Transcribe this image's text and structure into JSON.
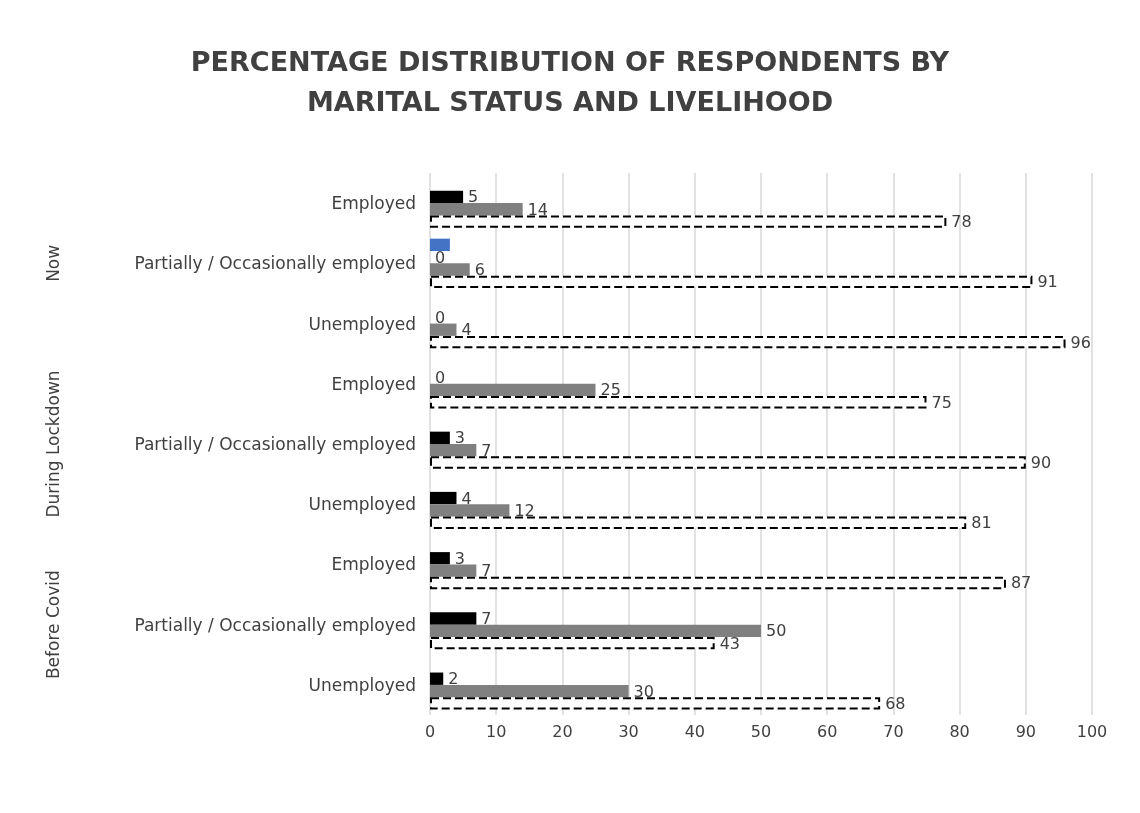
{
  "chart_data": {
    "type": "bar",
    "orientation": "horizontal",
    "title": "PERCENTAGE DISTRIBUTION OF RESPONDENTS BY\nMARITAL STATUS AND LIVELIHOOD",
    "categories": [
      "Employed",
      "Partially / Occasionally employed",
      "Unemployed",
      "Employed",
      "Partially / Occasionally employed",
      "Unemployed",
      "Employed",
      "Partially / Occasionally employed",
      "Unemployed"
    ],
    "annotations": [
      "Now",
      "During Lockdown",
      "Before Covid"
    ],
    "series": [
      {
        "color": "#4472c4",
        "values": [
          0,
          3,
          0,
          0,
          0,
          0,
          0,
          0,
          0
        ],
        "value_labels": [
          null,
          null,
          null,
          null,
          null,
          null,
          null,
          null,
          null
        ]
      },
      {
        "color": "#000000",
        "values": [
          5,
          0,
          0,
          0,
          3,
          4,
          3,
          7,
          2
        ],
        "value_labels": [
          "5",
          "0",
          "0",
          "0",
          "3",
          "4",
          "3",
          "7",
          "2"
        ]
      },
      {
        "color": "#808080",
        "values": [
          14,
          6,
          4,
          25,
          7,
          12,
          7,
          50,
          30
        ],
        "value_labels": [
          "14",
          "6",
          "4",
          "25",
          "7",
          "12",
          "7",
          "50",
          "30"
        ]
      },
      {
        "color": "#ffffff",
        "line_style": "dashed",
        "values": [
          78,
          91,
          96,
          75,
          90,
          81,
          87,
          43,
          68
        ],
        "value_labels": [
          "78",
          "91",
          "96",
          "75",
          "90",
          "81",
          "87",
          "43",
          "68"
        ]
      }
    ],
    "xlim": [
      0,
      100
    ],
    "xticks": [
      0,
      10,
      20,
      30,
      40,
      50,
      60,
      70,
      80,
      90,
      100
    ],
    "grid": "x"
  }
}
